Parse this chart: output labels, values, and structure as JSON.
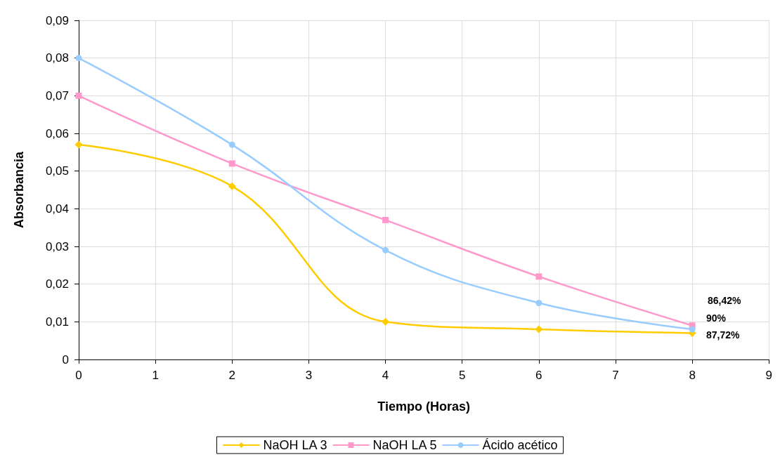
{
  "chart_data": {
    "type": "line",
    "xlabel": "Tiempo (Horas)",
    "ylabel": "Absorbancia",
    "x": [
      0,
      2,
      4,
      6,
      8
    ],
    "series": [
      {
        "name": "NaOH LA 3",
        "color": "#ffcc00",
        "marker": "diamond",
        "values": [
          0.057,
          0.046,
          0.01,
          0.008,
          0.007
        ]
      },
      {
        "name": "NaOH LA 5",
        "color": "#ff99cc",
        "marker": "square",
        "values": [
          0.07,
          0.052,
          0.037,
          0.022,
          0.009
        ]
      },
      {
        "name": "Ácido acético",
        "color": "#99ccff",
        "marker": "circle",
        "values": [
          0.08,
          0.057,
          0.029,
          0.015,
          0.008
        ]
      }
    ],
    "xlim": [
      0,
      9
    ],
    "xticks": [
      0,
      1,
      2,
      3,
      4,
      5,
      6,
      7,
      8,
      9
    ],
    "ylim": [
      0,
      0.09
    ],
    "yticks": [
      0,
      {
        "value": 0.01,
        "label": "0,01"
      },
      {
        "value": 0.02,
        "label": "0,02"
      },
      {
        "value": 0.03,
        "label": "0,03"
      },
      {
        "value": 0.04,
        "label": "0,04"
      },
      {
        "value": 0.05,
        "label": "0,05"
      },
      {
        "value": 0.06,
        "label": "0,06"
      },
      {
        "value": 0.07,
        "label": "0,07"
      },
      {
        "value": 0.08,
        "label": "0,08"
      },
      {
        "value": 0.09,
        "label": "0,09"
      }
    ],
    "annotations": [
      "86,42%",
      "90%",
      "87,72%"
    ],
    "grid": true,
    "legend": "bottom"
  }
}
